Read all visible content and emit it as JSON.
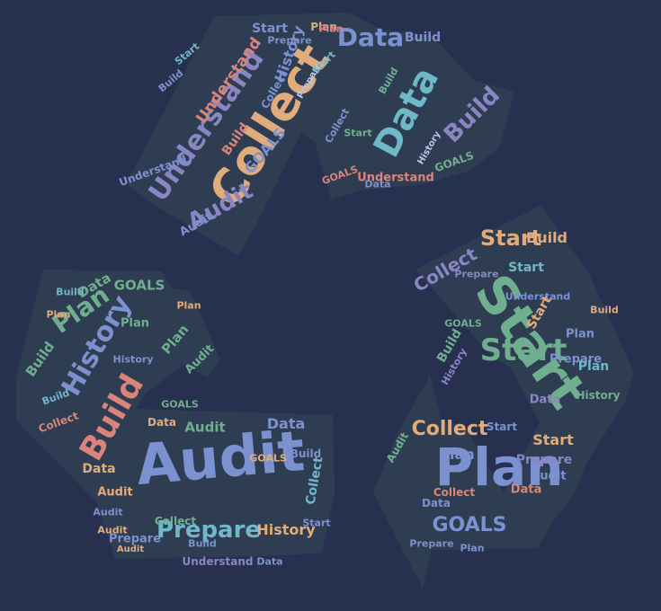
{
  "palette": {
    "background": "#28304f",
    "shape": "#2f3d53",
    "orange": "#e0ac7c",
    "blue": "#7c92d0",
    "teal": "#6fb8c8",
    "green": "#6fae8e",
    "salmon": "#d9857b",
    "purple": "#8a86c4",
    "light": "#bcc6e8"
  },
  "words": [
    {
      "text": "Collect",
      "c": "orange"
    },
    {
      "text": "Data",
      "c": "teal"
    },
    {
      "text": "Understand",
      "c": "purple"
    },
    {
      "text": "Build",
      "c": "purple"
    },
    {
      "text": "Audit",
      "c": "purple"
    },
    {
      "text": "Data",
      "c": "blue"
    },
    {
      "text": "Understand",
      "c": "salmon"
    },
    {
      "text": "History",
      "c": "blue"
    },
    {
      "text": "GOALS",
      "c": "blue"
    },
    {
      "text": "Build",
      "c": "blue"
    },
    {
      "text": "Start",
      "c": "blue"
    },
    {
      "text": "Plan",
      "c": "orange"
    },
    {
      "text": "Prepare",
      "c": "blue"
    },
    {
      "text": "Start",
      "c": "teal"
    },
    {
      "text": "Build",
      "c": "blue"
    },
    {
      "text": "Collect",
      "c": "blue"
    },
    {
      "text": "Understand",
      "c": "blue"
    },
    {
      "text": "Understand",
      "c": "salmon"
    },
    {
      "text": "GOALS",
      "c": "green"
    },
    {
      "text": "Build",
      "c": "salmon"
    },
    {
      "text": "Audit",
      "c": "blue"
    },
    {
      "text": "Data",
      "c": "blue"
    },
    {
      "text": "Collect",
      "c": "blue"
    },
    {
      "text": "GOALS",
      "c": "salmon"
    },
    {
      "text": "Start",
      "c": "green"
    },
    {
      "text": "Prepare",
      "c": "light"
    },
    {
      "text": "History",
      "c": "light"
    },
    {
      "text": "Start",
      "c": "teal"
    },
    {
      "text": "Plan",
      "c": "salmon"
    },
    {
      "text": "Build",
      "c": "green"
    },
    {
      "text": "Start",
      "c": "green"
    },
    {
      "text": "Plan",
      "c": "blue"
    },
    {
      "text": "Start",
      "c": "green"
    },
    {
      "text": "Start",
      "c": "orange"
    },
    {
      "text": "Collect",
      "c": "orange"
    },
    {
      "text": "Collect",
      "c": "purple"
    },
    {
      "text": "Build",
      "c": "orange"
    },
    {
      "text": "Start",
      "c": "orange"
    },
    {
      "text": "Start",
      "c": "teal"
    },
    {
      "text": "Prepare",
      "c": "purple"
    },
    {
      "text": "Plan",
      "c": "blue"
    },
    {
      "text": "Data",
      "c": "salmon"
    },
    {
      "text": "Understand",
      "c": "blue"
    },
    {
      "text": "Collect",
      "c": "salmon"
    },
    {
      "text": "Plan",
      "c": "blue"
    },
    {
      "text": "Prepare",
      "c": "blue"
    },
    {
      "text": "GOALS",
      "c": "blue"
    },
    {
      "text": "Data",
      "c": "blue"
    },
    {
      "text": "Prepare",
      "c": "blue"
    },
    {
      "text": "Plan",
      "c": "blue"
    },
    {
      "text": "Start",
      "c": "orange"
    },
    {
      "text": "Audit",
      "c": "blue"
    },
    {
      "text": "History",
      "c": "purple"
    },
    {
      "text": "Start",
      "c": "blue"
    },
    {
      "text": "Build",
      "c": "green"
    },
    {
      "text": "Audit",
      "c": "green"
    },
    {
      "text": "Build",
      "c": "orange"
    },
    {
      "text": "History",
      "c": "green"
    },
    {
      "text": "GOALS",
      "c": "green"
    },
    {
      "text": "Prepare",
      "c": "purple"
    },
    {
      "text": "Data",
      "c": "purple"
    },
    {
      "text": "Plan",
      "c": "teal"
    },
    {
      "text": "Audit",
      "c": "blue"
    },
    {
      "text": "Build",
      "c": "salmon"
    },
    {
      "text": "History",
      "c": "blue"
    },
    {
      "text": "Plan",
      "c": "green"
    },
    {
      "text": "Prepare",
      "c": "teal"
    },
    {
      "text": "Build",
      "c": "green"
    },
    {
      "text": "Data",
      "c": "green"
    },
    {
      "text": "GOALS",
      "c": "green"
    },
    {
      "text": "Plan",
      "c": "green"
    },
    {
      "text": "Audit",
      "c": "green"
    },
    {
      "text": "Data",
      "c": "blue"
    },
    {
      "text": "Audit",
      "c": "green"
    },
    {
      "text": "History",
      "c": "orange"
    },
    {
      "text": "Data",
      "c": "orange"
    },
    {
      "text": "Collect",
      "c": "salmon"
    },
    {
      "text": "Build",
      "c": "teal"
    },
    {
      "text": "Collect",
      "c": "teal"
    },
    {
      "text": "Understand",
      "c": "purple"
    },
    {
      "text": "Audit",
      "c": "orange"
    },
    {
      "text": "Prepare",
      "c": "blue"
    },
    {
      "text": "Build",
      "c": "blue"
    },
    {
      "text": "Audit",
      "c": "blue"
    },
    {
      "text": "Plan",
      "c": "green"
    },
    {
      "text": "History",
      "c": "blue"
    },
    {
      "text": "GOALS",
      "c": "green"
    },
    {
      "text": "Audit",
      "c": "orange"
    },
    {
      "text": "Data",
      "c": "blue"
    },
    {
      "text": "GOALS",
      "c": "orange"
    },
    {
      "text": "Start",
      "c": "blue"
    },
    {
      "text": "Collect",
      "c": "green"
    },
    {
      "text": "Data",
      "c": "orange"
    },
    {
      "text": "Audit",
      "c": "orange"
    },
    {
      "text": "Build",
      "c": "teal"
    },
    {
      "text": "Plan",
      "c": "orange"
    },
    {
      "text": "Build",
      "c": "blue"
    },
    {
      "text": "Plan",
      "c": "orange"
    }
  ]
}
